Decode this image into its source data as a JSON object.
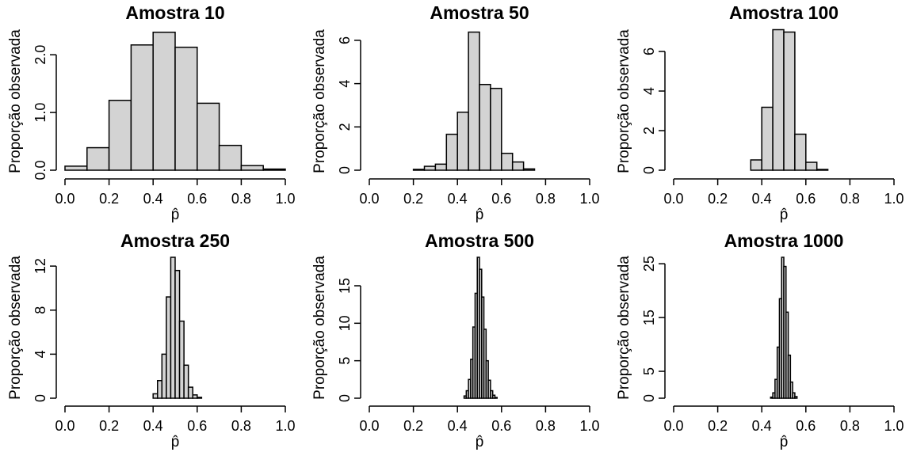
{
  "chart_data": [
    {
      "type": "bar",
      "title": "Amostra 10",
      "xlabel": "p̂",
      "ylabel": "Proporção observada",
      "xlim": [
        0,
        1
      ],
      "ylim": [
        0,
        2.4
      ],
      "xticks": [
        0,
        0.2,
        0.4,
        0.6,
        0.8,
        1
      ],
      "xtick_labels": [
        "0.0",
        "0.2",
        "0.4",
        "0.6",
        "0.8",
        "1.0"
      ],
      "yticks": [
        0,
        1,
        2
      ],
      "ytick_labels": [
        "0.0",
        "1.0",
        "2.0"
      ],
      "bin_width": 0.1,
      "bin_starts": [
        0,
        0.1,
        0.2,
        0.3,
        0.4,
        0.5,
        0.6,
        0.7,
        0.8,
        0.9
      ],
      "values": [
        0.07,
        0.39,
        1.21,
        2.17,
        2.39,
        2.13,
        1.16,
        0.43,
        0.08,
        0.02
      ]
    },
    {
      "type": "bar",
      "title": "Amostra 50",
      "xlabel": "p̂",
      "ylabel": "Proporção observada",
      "xlim": [
        0,
        1
      ],
      "ylim": [
        0,
        6.4
      ],
      "xticks": [
        0,
        0.2,
        0.4,
        0.6,
        0.8,
        1
      ],
      "xtick_labels": [
        "0.0",
        "0.2",
        "0.4",
        "0.6",
        "0.8",
        "1.0"
      ],
      "yticks": [
        0,
        2,
        4,
        6
      ],
      "ytick_labels": [
        "0",
        "2",
        "4",
        "6"
      ],
      "bin_width": 0.05,
      "bin_starts": [
        0.2,
        0.25,
        0.3,
        0.35,
        0.4,
        0.45,
        0.5,
        0.55,
        0.6,
        0.65,
        0.7
      ],
      "values": [
        0.04,
        0.18,
        0.28,
        1.66,
        2.68,
        6.38,
        3.96,
        3.78,
        0.78,
        0.38,
        0.06
      ]
    },
    {
      "type": "bar",
      "title": "Amostra 100",
      "xlabel": "p̂",
      "ylabel": "Proporção observada",
      "xlim": [
        0,
        1
      ],
      "ylim": [
        0,
        7.0
      ],
      "xticks": [
        0,
        0.2,
        0.4,
        0.6,
        0.8,
        1
      ],
      "xtick_labels": [
        "0.0",
        "0.2",
        "0.4",
        "0.6",
        "0.8",
        "1.0"
      ],
      "yticks": [
        0,
        2,
        4,
        6
      ],
      "ytick_labels": [
        "0",
        "2",
        "4",
        "6"
      ],
      "bin_width": 0.05,
      "bin_starts": [
        0.35,
        0.4,
        0.45,
        0.5,
        0.55,
        0.6,
        0.65
      ],
      "values": [
        0.52,
        3.18,
        7.1,
        6.98,
        1.82,
        0.4,
        0.04
      ]
    },
    {
      "type": "bar",
      "title": "Amostra 250",
      "xlabel": "p̂",
      "ylabel": "Proporção observada",
      "xlim": [
        0,
        1
      ],
      "ylim": [
        0,
        12.8
      ],
      "xticks": [
        0,
        0.2,
        0.4,
        0.6,
        0.8,
        1
      ],
      "xtick_labels": [
        "0.0",
        "0.2",
        "0.4",
        "0.6",
        "0.8",
        "1.0"
      ],
      "yticks": [
        0,
        4,
        8,
        12
      ],
      "ytick_labels": [
        "0",
        "4",
        "8",
        "12"
      ],
      "bin_width": 0.02,
      "bin_starts": [
        0.4,
        0.42,
        0.44,
        0.46,
        0.48,
        0.5,
        0.52,
        0.54,
        0.56,
        0.58,
        0.6
      ],
      "values": [
        0.4,
        1.6,
        4.0,
        9.2,
        12.8,
        11.6,
        7.0,
        3.0,
        1.0,
        0.3,
        0.08
      ]
    },
    {
      "type": "bar",
      "title": "Amostra 500",
      "xlabel": "p̂",
      "ylabel": "Proporção observada",
      "xlim": [
        0,
        1
      ],
      "ylim": [
        0,
        18.8
      ],
      "xticks": [
        0,
        0.2,
        0.4,
        0.6,
        0.8,
        1
      ],
      "xtick_labels": [
        "0.0",
        "0.2",
        "0.4",
        "0.6",
        "0.8",
        "1.0"
      ],
      "yticks": [
        0,
        5,
        10,
        15
      ],
      "ytick_labels": [
        "0",
        "5",
        "10",
        "15"
      ],
      "bin_width": 0.01,
      "bin_starts": [
        0.43,
        0.44,
        0.45,
        0.46,
        0.47,
        0.48,
        0.49,
        0.5,
        0.51,
        0.52,
        0.53,
        0.54,
        0.55,
        0.56,
        0.57
      ],
      "values": [
        0.3,
        1.0,
        2.5,
        5.2,
        9.5,
        14.0,
        18.8,
        17.2,
        13.5,
        9.2,
        5.0,
        2.4,
        1.0,
        0.4,
        0.1
      ]
    },
    {
      "type": "bar",
      "title": "Amostra 1000",
      "xlabel": "p̂",
      "ylabel": "Proporção observada",
      "xlim": [
        0,
        1
      ],
      "ylim": [
        0,
        26.2
      ],
      "xticks": [
        0,
        0.2,
        0.4,
        0.6,
        0.8,
        1
      ],
      "xtick_labels": [
        "0.0",
        "0.2",
        "0.4",
        "0.6",
        "0.8",
        "1.0"
      ],
      "yticks": [
        0,
        5,
        15,
        25
      ],
      "ytick_labels": [
        "0",
        "5",
        "15",
        "25"
      ],
      "bin_width": 0.01,
      "bin_starts": [
        0.44,
        0.45,
        0.46,
        0.47,
        0.48,
        0.49,
        0.5,
        0.51,
        0.52,
        0.53,
        0.54,
        0.55
      ],
      "values": [
        0.2,
        1.0,
        3.5,
        9.5,
        18.5,
        26.2,
        24.5,
        16.0,
        8.0,
        3.0,
        1.0,
        0.3
      ]
    }
  ],
  "colors": {
    "bar_fill": "#d3d3d3",
    "bar_stroke": "#000000",
    "axis": "#000000"
  }
}
